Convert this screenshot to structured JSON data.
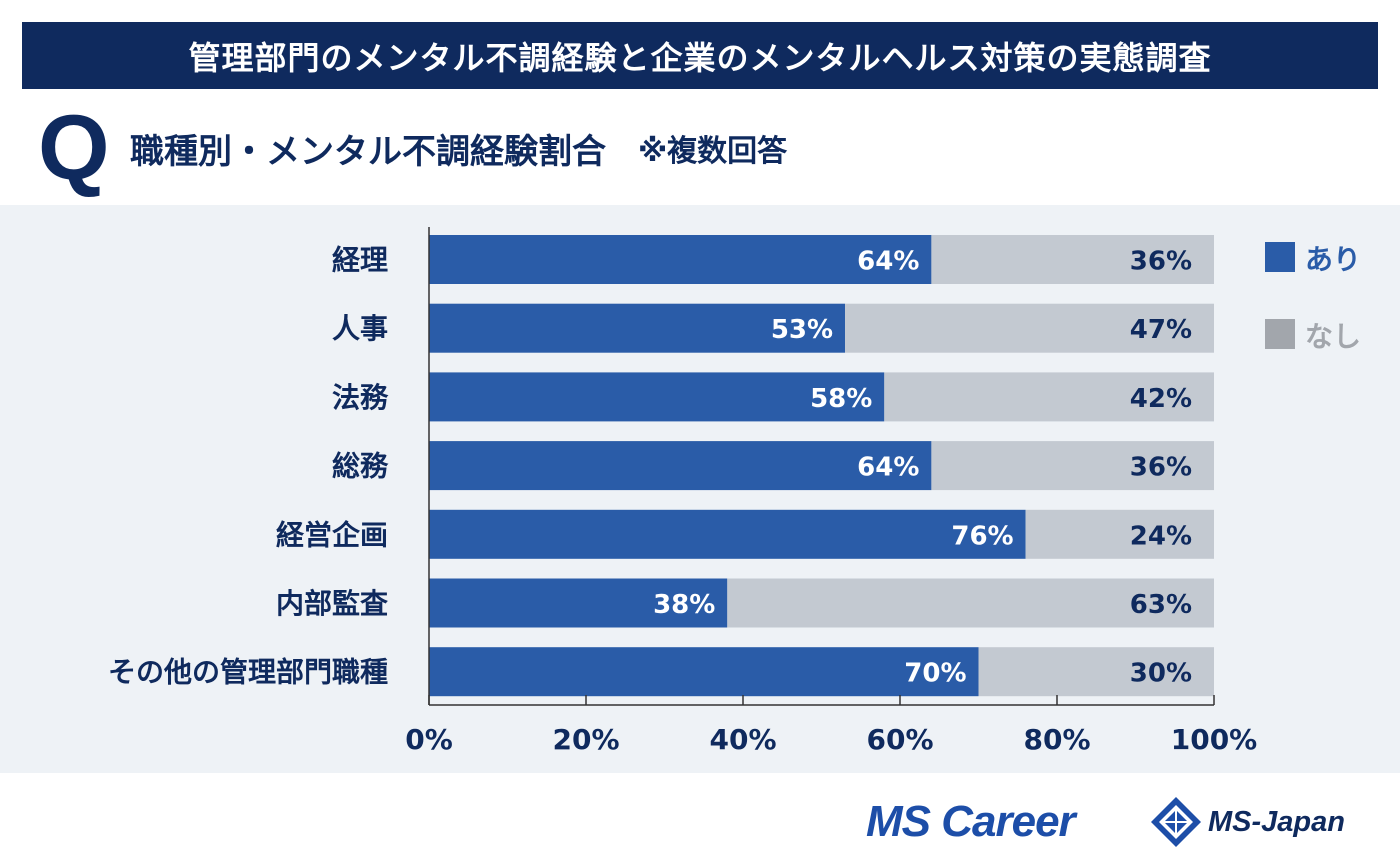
{
  "header": {
    "title": "管理部門のメンタル不調経験と企業のメンタルヘルス対策の実態調査"
  },
  "question": {
    "mark": "Q",
    "text": "職種別・メンタル不調経験割合",
    "note": "※複数回答"
  },
  "chart_data": {
    "type": "bar",
    "orientation": "horizontal",
    "stacked": true,
    "categories": [
      "経理",
      "人事",
      "法務",
      "総務",
      "経営企画",
      "内部監査",
      "その他の管理部門職種"
    ],
    "series": [
      {
        "name": "あり",
        "color": "#2a5ca8",
        "values": [
          64,
          53,
          58,
          64,
          76,
          38,
          70
        ],
        "labels": [
          "64%",
          "53%",
          "58%",
          "64%",
          "76%",
          "38%",
          "70%"
        ]
      },
      {
        "name": "なし",
        "color": "#c3c9d1",
        "values": [
          36,
          47,
          42,
          36,
          24,
          63,
          30
        ],
        "labels": [
          "36%",
          "47%",
          "42%",
          "36%",
          "24%",
          "63%",
          "30%"
        ]
      }
    ],
    "xlim": [
      0,
      100
    ],
    "ticks": [
      0,
      20,
      40,
      60,
      80,
      100
    ],
    "tick_labels": [
      "0%",
      "20%",
      "40%",
      "60%",
      "80%",
      "100%"
    ],
    "legend": {
      "position": "top-right",
      "items": [
        "あり",
        "なし"
      ],
      "text_colors": [
        "#2a5ca8",
        "#a2a6ac"
      ],
      "swatch_colors": [
        "#2a5ca8",
        "#a2a6ac"
      ]
    },
    "grid": false
  },
  "footer": {
    "logo_mscareer": "MS Career",
    "logo_msjapan": "MS-Japan"
  }
}
